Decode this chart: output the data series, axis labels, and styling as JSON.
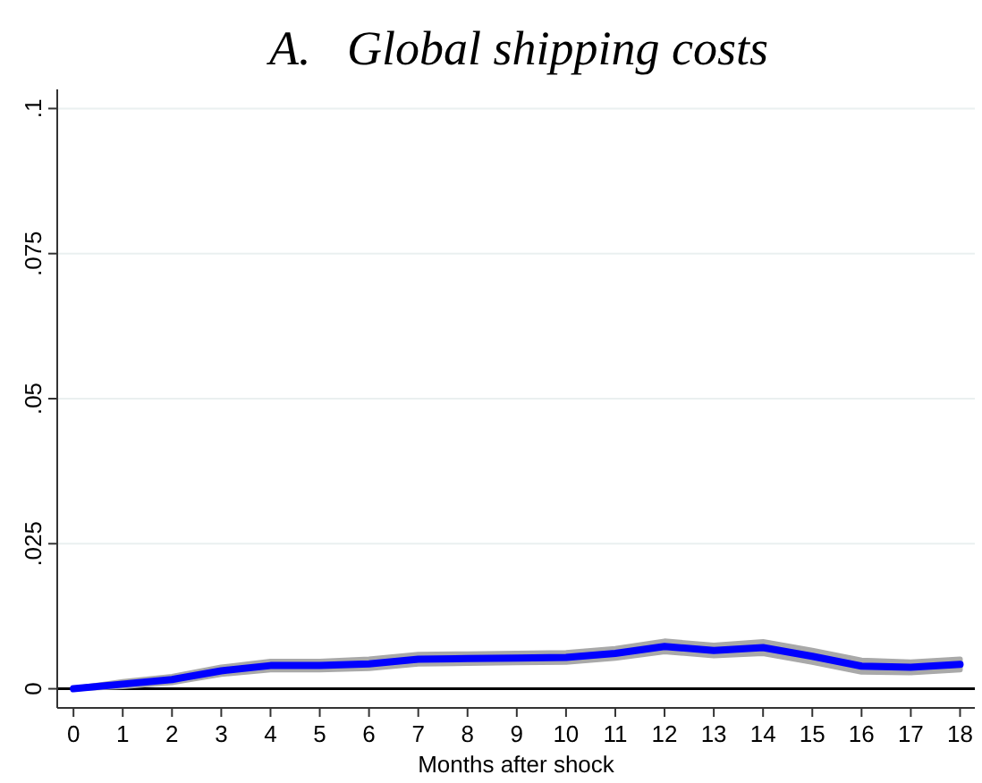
{
  "chart_data": {
    "type": "line",
    "title": "A.   Global shipping costs",
    "xlabel": "Months after shock",
    "x": [
      0,
      1,
      2,
      3,
      4,
      5,
      6,
      7,
      8,
      9,
      10,
      11,
      12,
      13,
      14,
      15,
      16,
      17,
      18
    ],
    "series": [
      {
        "color": "#0000ff",
        "values": [
          0,
          0.0008,
          0.0016,
          0.0031,
          0.004,
          0.004,
          0.0043,
          0.0051,
          0.0052,
          0.0053,
          0.0054,
          0.0061,
          0.0073,
          0.0066,
          0.0071,
          0.0056,
          0.0039,
          0.0037,
          0.0042
        ],
        "lower": [
          0,
          0.0004,
          0.0011,
          0.0025,
          0.0033,
          0.0033,
          0.0035,
          0.0043,
          0.0044,
          0.0045,
          0.0046,
          0.0053,
          0.0064,
          0.0057,
          0.0061,
          0.0046,
          0.0029,
          0.0028,
          0.0033
        ],
        "upper": [
          0,
          0.0012,
          0.0021,
          0.0037,
          0.0047,
          0.0047,
          0.0051,
          0.0059,
          0.006,
          0.0061,
          0.0062,
          0.0069,
          0.0082,
          0.0075,
          0.0081,
          0.0066,
          0.0049,
          0.0046,
          0.0051
        ]
      }
    ],
    "xlim": [
      -0.33,
      18.3
    ],
    "xticks": [
      0,
      1,
      2,
      3,
      4,
      5,
      6,
      7,
      8,
      9,
      10,
      11,
      12,
      13,
      14,
      15,
      16,
      17,
      18
    ],
    "ylim": [
      -0.0033,
      0.1033
    ],
    "yticks": [
      0,
      {
        "value": 0.025,
        "label": ".025"
      },
      {
        "value": 0.05,
        "label": ".05"
      },
      {
        "value": 0.075,
        "label": ".075"
      },
      {
        "value": 0.1,
        "label": ".1"
      }
    ],
    "grid": "y",
    "marker": "none",
    "line_style": "solid",
    "ref_lines": [
      {
        "axis": "y",
        "value": 0,
        "color": "#000000"
      }
    ]
  }
}
